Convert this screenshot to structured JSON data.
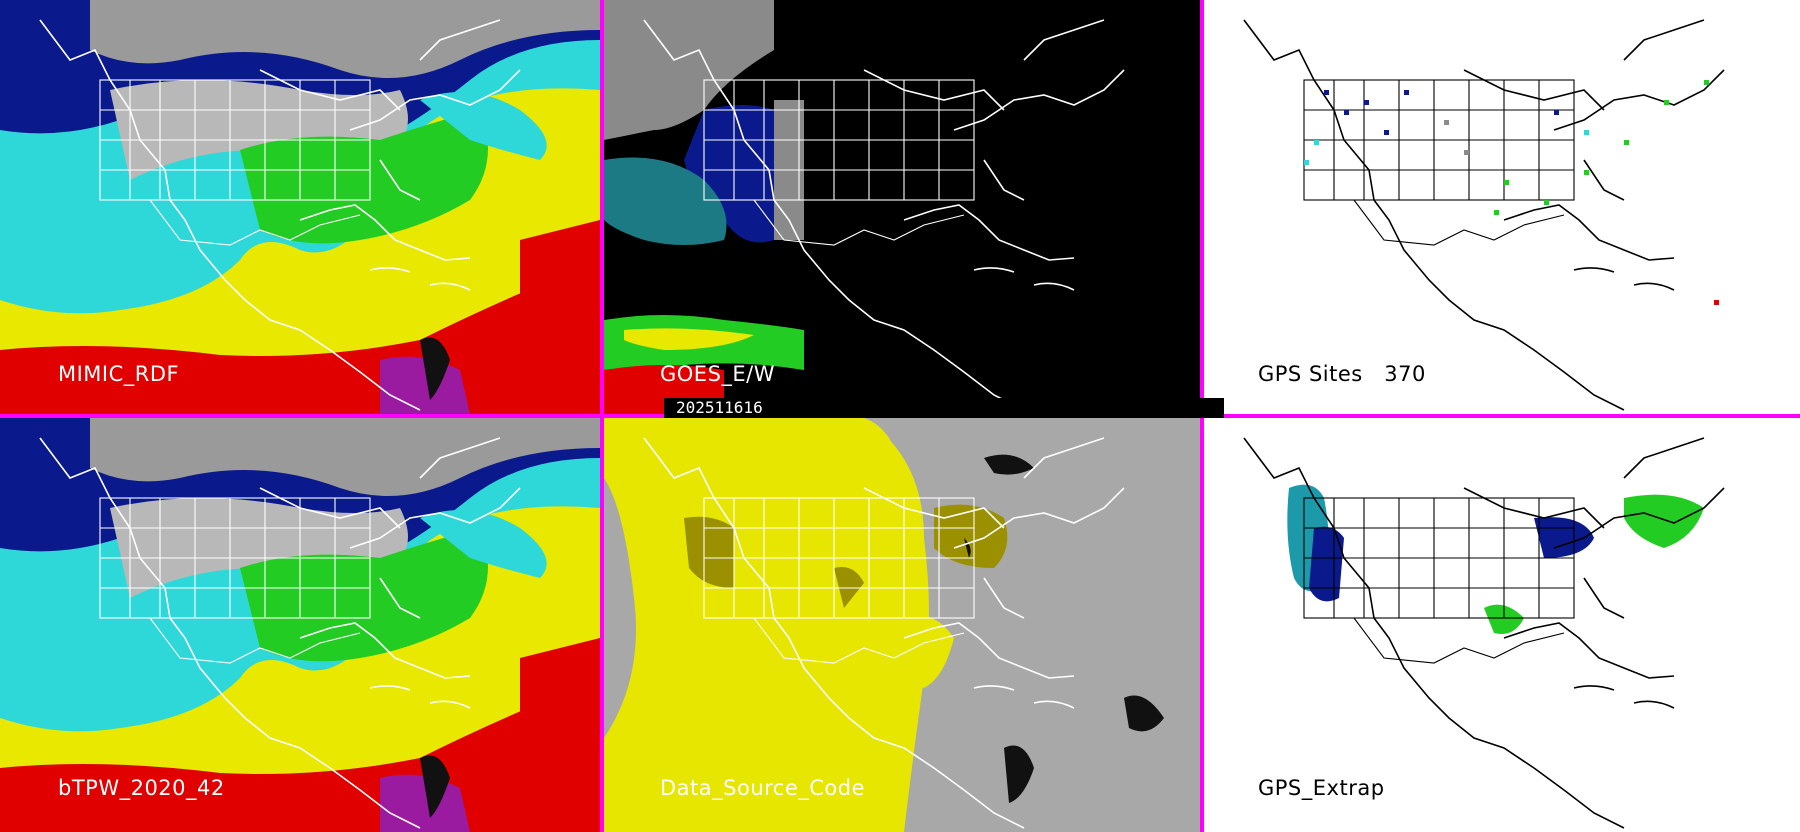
{
  "panels": [
    {
      "id": "p1",
      "label": "MIMIC_RDF"
    },
    {
      "id": "p2",
      "label": "GOES_E/W"
    },
    {
      "id": "p3",
      "label": "GPS Sites   370"
    },
    {
      "id": "p4",
      "label": "bTPW_2020_42"
    },
    {
      "id": "p5",
      "label": "Data_Source_Code"
    },
    {
      "id": "p6",
      "label": "GPS_Extrap"
    }
  ],
  "timestamp": "202511616",
  "colors": {
    "divider": "#ff00ff",
    "tpw_cyan": "#2fd8d8",
    "tpw_green": "#22cc22",
    "tpw_yellow": "#e8e800",
    "tpw_red": "#e00000",
    "tpw_blue": "#0a1a8c",
    "source_gray": "#a8a8a8",
    "source_yellow": "#e6e600"
  }
}
